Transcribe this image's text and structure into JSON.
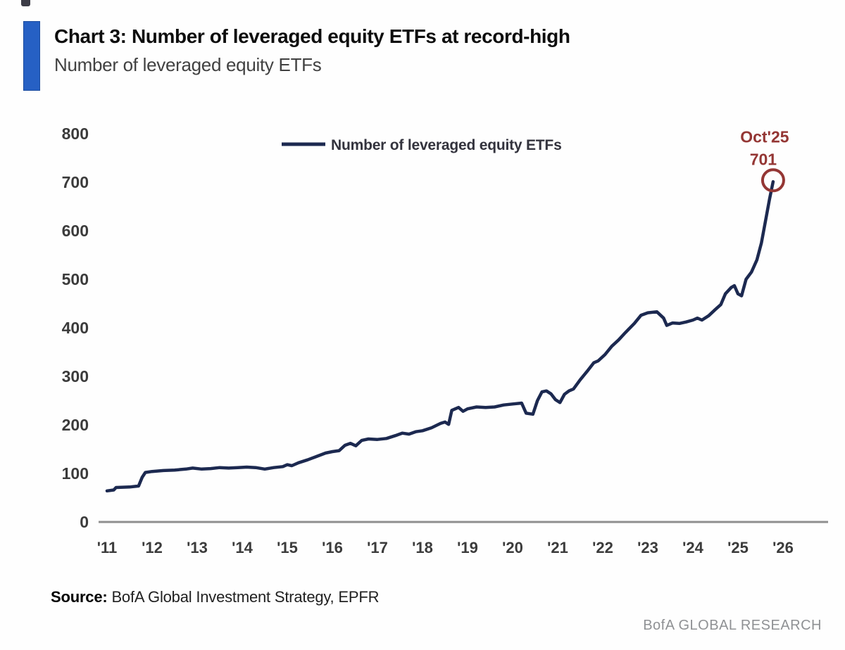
{
  "header": {
    "title": "Chart 3: Number of leveraged equity ETFs at record-high",
    "subtitle": "Number of leveraged equity ETFs",
    "accent_color": "#2660c4"
  },
  "chart_data": {
    "type": "line",
    "title": "Chart 3: Number of leveraged equity ETFs at record-high",
    "xlabel": "",
    "ylabel": "",
    "ylim": [
      0,
      800
    ],
    "xlim": [
      2010.8,
      2026.3
    ],
    "grid": false,
    "legend_position": "top-center",
    "axis_color": "#8f8f8f",
    "tick_color": "#3b3b3b",
    "yticks": [
      0,
      100,
      200,
      300,
      400,
      500,
      600,
      700,
      800
    ],
    "xticks": [
      2011,
      2012,
      2013,
      2014,
      2015,
      2016,
      2017,
      2018,
      2019,
      2020,
      2021,
      2022,
      2023,
      2024,
      2025,
      2026
    ],
    "xticklabels": [
      "'11",
      "'12",
      "'13",
      "'14",
      "'15",
      "'16",
      "'17",
      "'18",
      "'19",
      "'20",
      "'21",
      "'22",
      "'23",
      "'24",
      "'25",
      "'26"
    ],
    "series": [
      {
        "name": "Number of leveraged equity ETFs",
        "color": "#1c2950",
        "points": [
          [
            2011.0,
            64
          ],
          [
            2011.15,
            66
          ],
          [
            2011.2,
            71
          ],
          [
            2011.5,
            72
          ],
          [
            2011.7,
            74
          ],
          [
            2011.78,
            92
          ],
          [
            2011.85,
            102
          ],
          [
            2012.0,
            104
          ],
          [
            2012.25,
            106
          ],
          [
            2012.5,
            107
          ],
          [
            2012.75,
            109
          ],
          [
            2012.9,
            111
          ],
          [
            2013.1,
            109
          ],
          [
            2013.3,
            110
          ],
          [
            2013.5,
            112
          ],
          [
            2013.7,
            111
          ],
          [
            2013.9,
            112
          ],
          [
            2014.1,
            113
          ],
          [
            2014.3,
            112
          ],
          [
            2014.5,
            109
          ],
          [
            2014.7,
            112
          ],
          [
            2014.9,
            114
          ],
          [
            2015.0,
            118
          ],
          [
            2015.1,
            116
          ],
          [
            2015.25,
            122
          ],
          [
            2015.45,
            128
          ],
          [
            2015.65,
            135
          ],
          [
            2015.85,
            142
          ],
          [
            2016.0,
            145
          ],
          [
            2016.15,
            147
          ],
          [
            2016.28,
            158
          ],
          [
            2016.4,
            162
          ],
          [
            2016.52,
            157
          ],
          [
            2016.65,
            168
          ],
          [
            2016.8,
            171
          ],
          [
            2017.0,
            170
          ],
          [
            2017.2,
            172
          ],
          [
            2017.4,
            178
          ],
          [
            2017.55,
            183
          ],
          [
            2017.7,
            181
          ],
          [
            2017.85,
            186
          ],
          [
            2018.0,
            188
          ],
          [
            2018.2,
            194
          ],
          [
            2018.4,
            203
          ],
          [
            2018.5,
            206
          ],
          [
            2018.58,
            201
          ],
          [
            2018.65,
            230
          ],
          [
            2018.8,
            236
          ],
          [
            2018.9,
            228
          ],
          [
            2019.0,
            233
          ],
          [
            2019.2,
            237
          ],
          [
            2019.4,
            236
          ],
          [
            2019.6,
            237
          ],
          [
            2019.8,
            241
          ],
          [
            2020.0,
            243
          ],
          [
            2020.2,
            245
          ],
          [
            2020.3,
            224
          ],
          [
            2020.45,
            222
          ],
          [
            2020.55,
            250
          ],
          [
            2020.65,
            268
          ],
          [
            2020.75,
            270
          ],
          [
            2020.85,
            264
          ],
          [
            2020.95,
            252
          ],
          [
            2021.05,
            246
          ],
          [
            2021.15,
            263
          ],
          [
            2021.25,
            270
          ],
          [
            2021.35,
            274
          ],
          [
            2021.5,
            293
          ],
          [
            2021.65,
            310
          ],
          [
            2021.8,
            328
          ],
          [
            2021.9,
            332
          ],
          [
            2022.05,
            345
          ],
          [
            2022.2,
            362
          ],
          [
            2022.35,
            375
          ],
          [
            2022.5,
            390
          ],
          [
            2022.7,
            409
          ],
          [
            2022.85,
            426
          ],
          [
            2023.0,
            431
          ],
          [
            2023.2,
            433
          ],
          [
            2023.35,
            420
          ],
          [
            2023.42,
            405
          ],
          [
            2023.55,
            410
          ],
          [
            2023.7,
            409
          ],
          [
            2023.85,
            412
          ],
          [
            2024.0,
            416
          ],
          [
            2024.1,
            420
          ],
          [
            2024.2,
            416
          ],
          [
            2024.35,
            425
          ],
          [
            2024.5,
            438
          ],
          [
            2024.62,
            448
          ],
          [
            2024.72,
            470
          ],
          [
            2024.85,
            483
          ],
          [
            2024.92,
            487
          ],
          [
            2025.0,
            470
          ],
          [
            2025.08,
            466
          ],
          [
            2025.18,
            500
          ],
          [
            2025.3,
            515
          ],
          [
            2025.42,
            540
          ],
          [
            2025.52,
            575
          ],
          [
            2025.62,
            625
          ],
          [
            2025.7,
            665
          ],
          [
            2025.78,
            701
          ]
        ]
      }
    ],
    "annotation": {
      "label_line1": "Oct'25",
      "label_line2": "701",
      "x": 2025.78,
      "y": 701,
      "color": "#943634"
    }
  },
  "footer": {
    "source_label": "Source:",
    "source_text": "BofA Global Investment Strategy, EPFR",
    "brand": "BofA GLOBAL RESEARCH"
  }
}
